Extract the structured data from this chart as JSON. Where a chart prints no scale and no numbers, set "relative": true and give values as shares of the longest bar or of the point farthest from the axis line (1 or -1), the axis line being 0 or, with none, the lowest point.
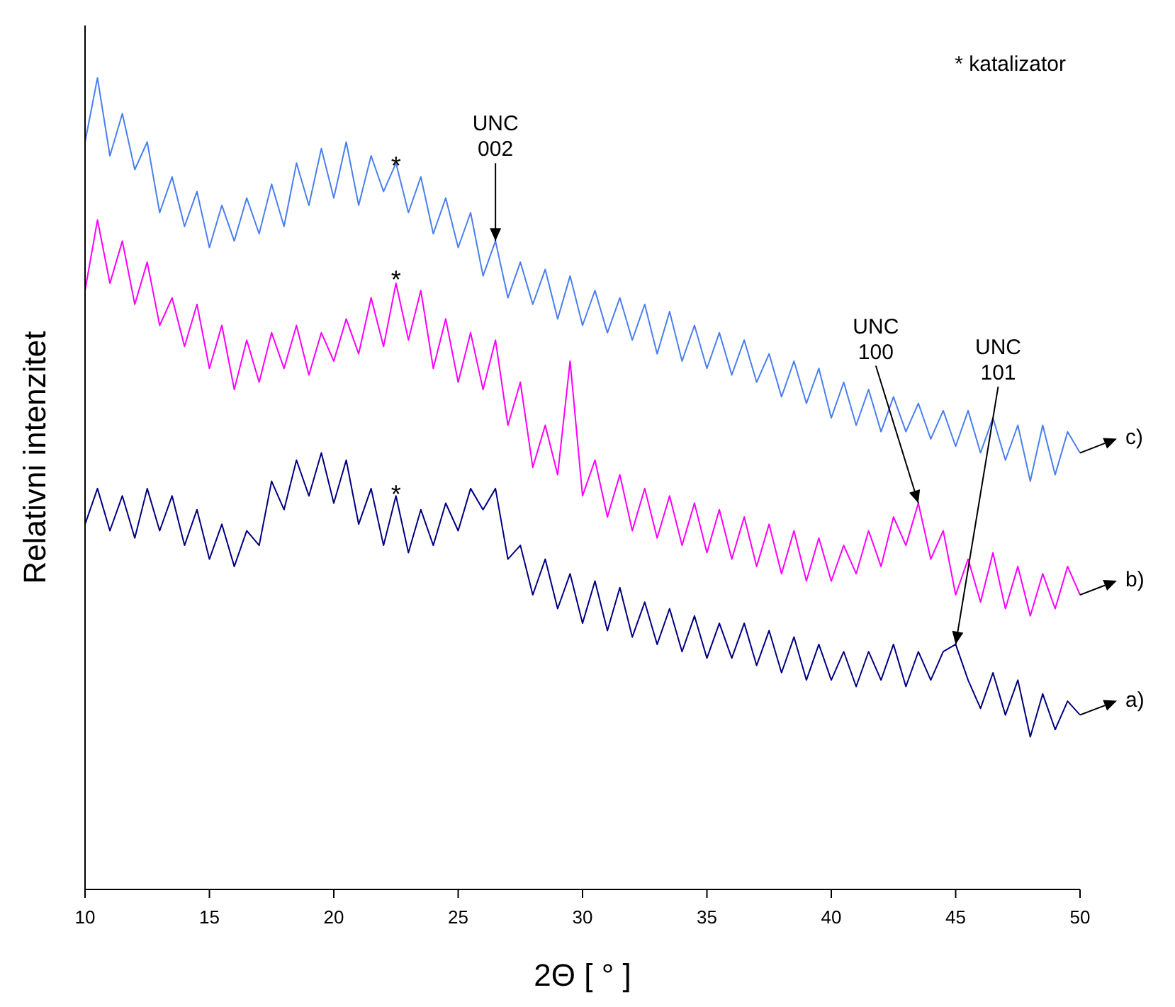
{
  "chart_data": {
    "type": "line",
    "relative": true,
    "xlabel": "2Θ [ ° ]",
    "ylabel": "Relativni intenzitet",
    "xlim": [
      10,
      50
    ],
    "xticks": [
      10,
      15,
      20,
      25,
      30,
      35,
      40,
      45,
      50
    ],
    "grid": false,
    "legend": false,
    "marker": "none",
    "line_style": "solid",
    "x": [
      10,
      10.5,
      11,
      11.5,
      12,
      12.5,
      13,
      13.5,
      14,
      14.5,
      15,
      15.5,
      16,
      16.5,
      17,
      17.5,
      18,
      18.5,
      19,
      19.5,
      20,
      20.5,
      21,
      21.5,
      22,
      22.5,
      23,
      23.5,
      24,
      24.5,
      25,
      25.5,
      26,
      26.5,
      27,
      27.5,
      28,
      28.5,
      29,
      29.5,
      30,
      30.5,
      31,
      31.5,
      32,
      32.5,
      33,
      33.5,
      34,
      34.5,
      35,
      35.5,
      36,
      36.5,
      37,
      37.5,
      38,
      38.5,
      39,
      39.5,
      40,
      40.5,
      41,
      41.5,
      42,
      42.5,
      43,
      43.5,
      44,
      44.5,
      45,
      45.5,
      46,
      46.5,
      47,
      47.5,
      48,
      48.5,
      49,
      49.5,
      50
    ],
    "series": [
      {
        "name": "c)",
        "color": "#4a7ff0",
        "values": [
          0.921,
          1.0,
          0.904,
          0.956,
          0.887,
          0.921,
          0.834,
          0.878,
          0.817,
          0.86,
          0.791,
          0.843,
          0.799,
          0.852,
          0.808,
          0.869,
          0.817,
          0.895,
          0.843,
          0.913,
          0.852,
          0.921,
          0.843,
          0.904,
          0.86,
          0.895,
          0.834,
          0.878,
          0.808,
          0.852,
          0.791,
          0.834,
          0.756,
          0.799,
          0.729,
          0.773,
          0.721,
          0.764,
          0.703,
          0.756,
          0.695,
          0.738,
          0.686,
          0.729,
          0.677,
          0.721,
          0.66,
          0.712,
          0.651,
          0.695,
          0.642,
          0.686,
          0.634,
          0.677,
          0.625,
          0.66,
          0.607,
          0.651,
          0.599,
          0.642,
          0.581,
          0.625,
          0.572,
          0.616,
          0.564,
          0.607,
          0.564,
          0.599,
          0.555,
          0.59,
          0.546,
          0.59,
          0.538,
          0.581,
          0.529,
          0.572,
          0.503,
          0.572,
          0.511,
          0.564,
          0.538
        ]
      },
      {
        "name": "b)",
        "color": "#ff00ff",
        "values": [
          0.738,
          0.825,
          0.747,
          0.799,
          0.721,
          0.773,
          0.695,
          0.729,
          0.669,
          0.721,
          0.642,
          0.695,
          0.616,
          0.677,
          0.625,
          0.686,
          0.642,
          0.695,
          0.634,
          0.686,
          0.651,
          0.703,
          0.66,
          0.729,
          0.669,
          0.747,
          0.677,
          0.738,
          0.642,
          0.703,
          0.625,
          0.686,
          0.616,
          0.677,
          0.572,
          0.625,
          0.52,
          0.572,
          0.511,
          0.651,
          0.485,
          0.529,
          0.459,
          0.511,
          0.442,
          0.494,
          0.433,
          0.485,
          0.424,
          0.476,
          0.415,
          0.468,
          0.407,
          0.459,
          0.398,
          0.45,
          0.389,
          0.442,
          0.38,
          0.433,
          0.38,
          0.424,
          0.389,
          0.442,
          0.398,
          0.459,
          0.424,
          0.476,
          0.407,
          0.442,
          0.363,
          0.407,
          0.354,
          0.415,
          0.346,
          0.398,
          0.337,
          0.389,
          0.346,
          0.398,
          0.363
        ]
      },
      {
        "name": "a)",
        "color": "#000080",
        "values": [
          0.45,
          0.494,
          0.442,
          0.485,
          0.433,
          0.494,
          0.442,
          0.485,
          0.424,
          0.468,
          0.407,
          0.45,
          0.398,
          0.442,
          0.424,
          0.503,
          0.468,
          0.529,
          0.485,
          0.538,
          0.476,
          0.529,
          0.45,
          0.494,
          0.424,
          0.485,
          0.415,
          0.468,
          0.424,
          0.476,
          0.442,
          0.494,
          0.468,
          0.494,
          0.407,
          0.424,
          0.363,
          0.407,
          0.346,
          0.389,
          0.328,
          0.38,
          0.319,
          0.372,
          0.311,
          0.354,
          0.302,
          0.346,
          0.293,
          0.337,
          0.285,
          0.328,
          0.285,
          0.328,
          0.276,
          0.319,
          0.267,
          0.311,
          0.258,
          0.302,
          0.258,
          0.293,
          0.25,
          0.293,
          0.258,
          0.302,
          0.25,
          0.293,
          0.258,
          0.293,
          0.302,
          0.258,
          0.223,
          0.267,
          0.215,
          0.258,
          0.188,
          0.241,
          0.197,
          0.232,
          0.215
        ]
      }
    ],
    "annotations": [
      "* katalizator",
      {
        "text": "UNC 002",
        "x": 26.5,
        "y": 0.799
      },
      {
        "text": "UNC 100",
        "x": 43.5,
        "y": 0.476
      },
      {
        "text": "UNC 101",
        "x": 45,
        "y": 0.302
      },
      {
        "text": "*",
        "x": 22.5,
        "y": 0.895
      },
      {
        "text": "*",
        "x": 22.5,
        "y": 0.755
      },
      {
        "text": "*",
        "x": 22.5,
        "y": 0.49
      }
    ]
  }
}
